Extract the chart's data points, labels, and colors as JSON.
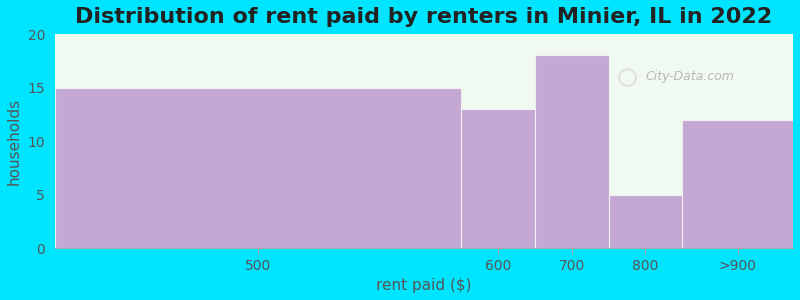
{
  "title": "Distribution of rent paid by renters in Minier, IL in 2022",
  "xlabel": "rent paid ($)",
  "ylabel": "households",
  "categories": [
    "500",
    "600",
    "700",
    "800",
    ">900"
  ],
  "values": [
    15,
    13,
    18,
    5,
    12
  ],
  "bar_color": "#c4a8d4",
  "bar_edgecolor": "#f0f0f0",
  "plot_bg_color": "#f0faf0",
  "fig_background": "#00e5ff",
  "ylim": [
    0,
    20
  ],
  "yticks": [
    0,
    5,
    10,
    15,
    20
  ],
  "title_fontsize": 16,
  "axis_label_fontsize": 11,
  "tick_fontsize": 10,
  "tick_color": "#555555",
  "label_color": "#555555",
  "title_color": "#222222",
  "watermark_text": "City-Data.com",
  "bin_edges": [
    0,
    550,
    650,
    750,
    850,
    1000
  ],
  "tick_positions": [
    275,
    600,
    700,
    800,
    925
  ],
  "tick_labels": [
    "500",
    "600",
    "700",
    "800",
    ">900"
  ]
}
